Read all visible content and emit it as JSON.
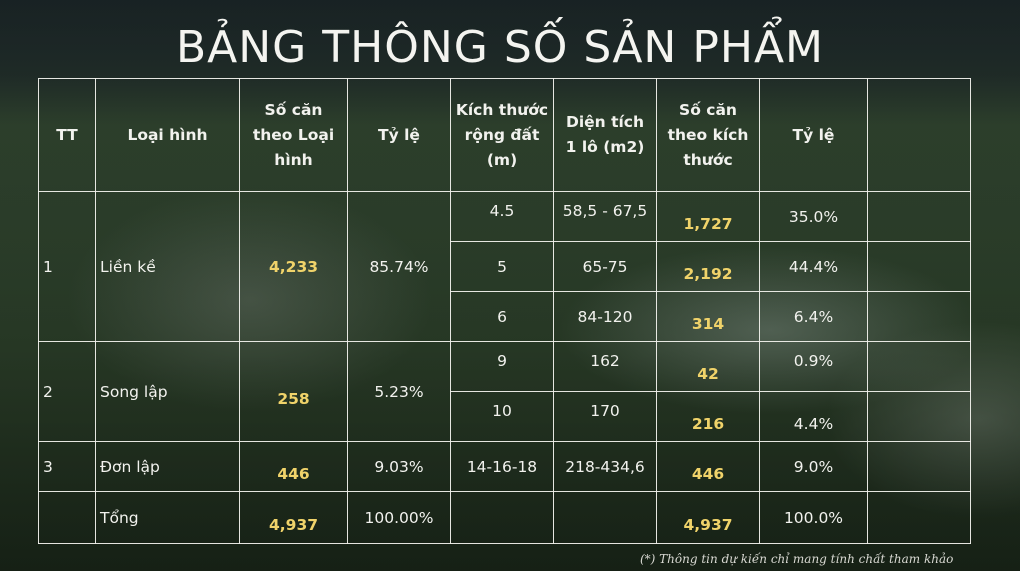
{
  "title": "BẢNG THÔNG SỐ SẢN PHẨM",
  "headers": {
    "tt": "TT",
    "loai_hinh": "Loại hình",
    "so_can_loai": "Số căn theo Loại hình",
    "ty_le_1": "Tỷ lệ",
    "kich_thuoc": "Kích thước rộng đất (m)",
    "dien_tich": "Diện tích 1 lô (m2)",
    "so_can_kt": "Số căn theo kích thước",
    "ty_le_2": "Tỷ lệ"
  },
  "groups": [
    {
      "tt": "1",
      "type": "Liền kề",
      "count": "4,233",
      "ratio": "85.74%",
      "rows": [
        {
          "width": "4.5",
          "area": "58,5 - 67,5",
          "count": "1,727",
          "ratio": "35.0%"
        },
        {
          "width": "5",
          "area": "65-75",
          "count": "2,192",
          "ratio": "44.4%"
        },
        {
          "width": "6",
          "area": "84-120",
          "count": "314",
          "ratio": "6.4%"
        }
      ]
    },
    {
      "tt": "2",
      "type": "Song lập",
      "count": "258",
      "ratio": "5.23%",
      "rows": [
        {
          "width": "9",
          "area": "162",
          "count": "42",
          "ratio": "0.9%"
        },
        {
          "width": "10",
          "area": "170",
          "count": "216",
          "ratio": "4.4%"
        }
      ]
    },
    {
      "tt": "3",
      "type": "Đơn lập",
      "count": "446",
      "ratio": "9.03%",
      "rows": [
        {
          "width": "14-16-18",
          "area": "218-434,6",
          "count": "446",
          "ratio": "9.0%"
        }
      ]
    }
  ],
  "total": {
    "label": "Tổng",
    "count": "4,937",
    "ratio": "100.00%",
    "count_size": "4,937",
    "ratio_size": "100.0%"
  },
  "note": "(*) Thông tin dự kiến chỉ mang tính chất tham khảo",
  "colors": {
    "highlight": "#f0d36a",
    "text": "#f2f2ee",
    "grid": "#f0f0eb"
  }
}
